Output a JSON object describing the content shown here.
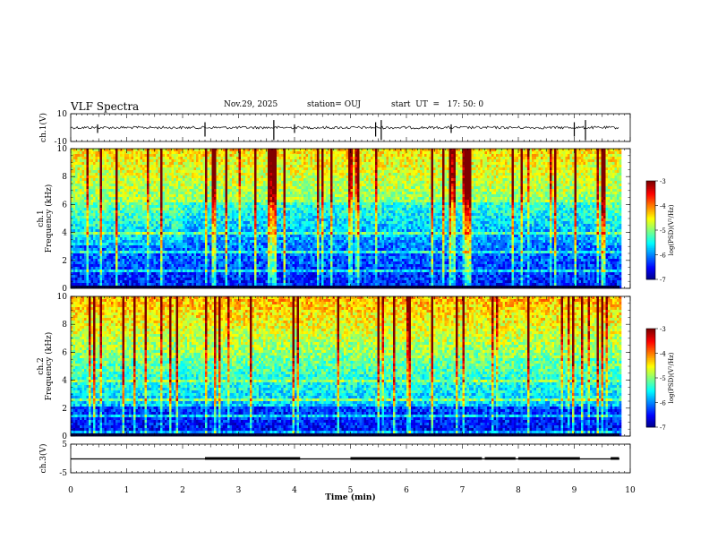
{
  "header": {
    "title": "VLF Spectra",
    "date": "Nov.29, 2025",
    "station": "station= OUJ",
    "start": "start  UT  =   17: 50: 0"
  },
  "chart_data": [
    {
      "type": "line",
      "name": "ch1-waveform",
      "ylabel": "ch.1(V)",
      "ylim": [
        -10,
        10
      ],
      "yticks": [
        "10",
        "-10"
      ],
      "xlim": [
        0,
        10
      ],
      "baseline": 0,
      "spikes_x": [
        0.48,
        2.4,
        3.63,
        4.0,
        5.45,
        5.55,
        6.8,
        9.0,
        9.2
      ]
    },
    {
      "type": "heatmap",
      "name": "ch1-spectrogram",
      "ylabel": "Frequency (kHz)",
      "channel_label": "ch.1",
      "ylim": [
        0,
        10
      ],
      "yticks": [
        "0",
        "2",
        "4",
        "6",
        "8",
        "10"
      ],
      "xlim": [
        0,
        10
      ],
      "colorbar": {
        "label": "log(PSD)(V²/Hz)",
        "ticks": [
          "-3",
          "-4",
          "-5",
          "-6",
          "-7"
        ],
        "range": [
          -7,
          -3
        ]
      }
    },
    {
      "type": "heatmap",
      "name": "ch2-spectrogram",
      "ylabel": "Frequency (kHz)",
      "channel_label": "ch.2",
      "ylim": [
        0,
        10
      ],
      "yticks": [
        "0",
        "2",
        "4",
        "6",
        "8",
        "10"
      ],
      "xlim": [
        0,
        10
      ],
      "colorbar": {
        "label": "log(PSD)(V²/Hz)",
        "ticks": [
          "-3",
          "-4",
          "-5",
          "-6",
          "-7"
        ],
        "range": [
          -7,
          -3
        ]
      }
    },
    {
      "type": "line",
      "name": "ch3-level",
      "ylabel": "ch.3(V)",
      "ylim": [
        -5,
        5
      ],
      "yticks": [
        "5",
        "-5"
      ],
      "xlim": [
        0,
        10
      ],
      "level": 0,
      "active_segments": [
        [
          2.4,
          4.1
        ],
        [
          5.0,
          7.35
        ],
        [
          7.4,
          7.95
        ],
        [
          8.0,
          9.1
        ],
        [
          9.65,
          9.8
        ]
      ]
    }
  ],
  "xaxis": {
    "label": "Time (min)",
    "ticks": [
      "0",
      "1",
      "2",
      "3",
      "4",
      "5",
      "6",
      "7",
      "8",
      "9",
      "10"
    ]
  }
}
